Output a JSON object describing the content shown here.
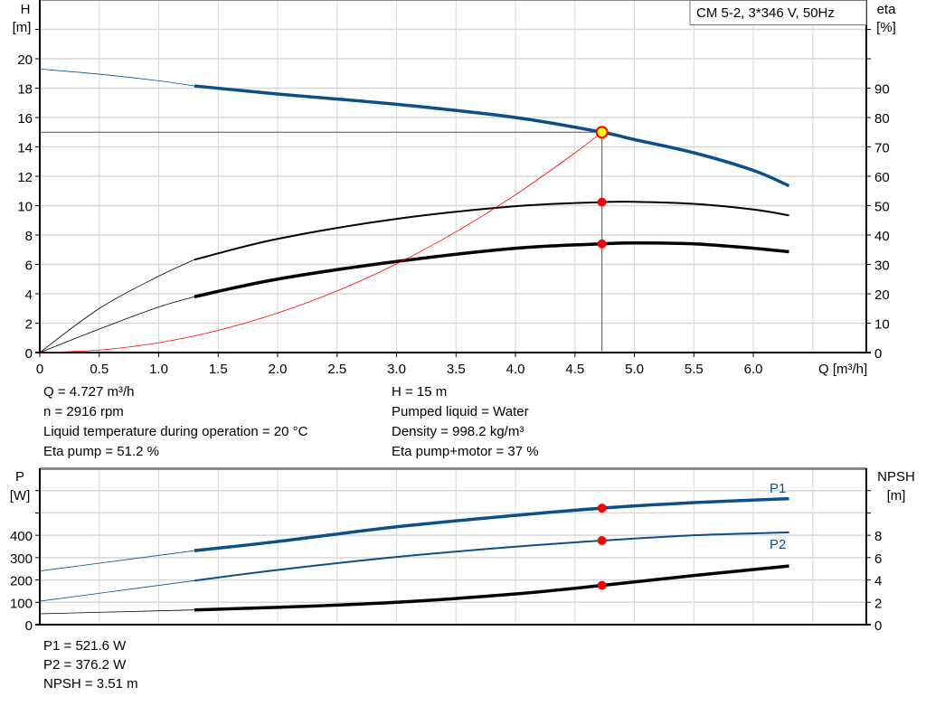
{
  "colors": {
    "blue": "#0d4f8b",
    "black": "#000000",
    "red": "#ff0000",
    "duty_fill": "#ffff00",
    "grid": "#d8d8d8"
  },
  "header": {
    "pump_label": "CM 5-2, 3*346 V, 50Hz"
  },
  "top_info": {
    "q": "Q = 4.727 m³/h",
    "n": "n = 2916 rpm",
    "temp": "Liquid temperature during operation = 20 °C",
    "eta_pump": "Eta pump = 51.2 %",
    "h": "H = 15 m",
    "liquid": "Pumped liquid = Water",
    "density": "Density = 998.2 kg/m³",
    "eta_total": "Eta pump+motor = 37 %"
  },
  "bottom_info": {
    "p1": "P1 = 521.6 W",
    "p2": "P2 = 376.2 W",
    "npsh": "NPSH = 3.51 m"
  },
  "chart_data": [
    {
      "type": "line",
      "xlabel": "Q [m³/h]",
      "ylabel_left": [
        "H",
        "[m]"
      ],
      "ylabel_right": [
        "eta",
        "[%]"
      ],
      "x_ticks": [
        "0",
        "0.5",
        "1.0",
        "1.5",
        "2.0",
        "2.5",
        "3.0",
        "3.5",
        "4.0",
        "4.5",
        "5.0",
        "5.5",
        "6.0"
      ],
      "y_left_ticks": [
        "0",
        "2",
        "4",
        "6",
        "8",
        "10",
        "12",
        "14",
        "16",
        "18",
        "20"
      ],
      "y_right_ticks": [
        "0",
        "10",
        "20",
        "30",
        "40",
        "50",
        "60",
        "70",
        "80",
        "90"
      ],
      "xlim": [
        0,
        6.95
      ],
      "ylim_left": [
        0,
        24
      ],
      "ylim_right": [
        0,
        120
      ],
      "grid": true,
      "duty_point": {
        "q": 4.727,
        "h": 15
      },
      "series": [
        {
          "key": "H",
          "axis": "left",
          "color": "blue",
          "min_q_range": 1.3,
          "x": [
            0,
            0.5,
            1.0,
            1.3,
            2.0,
            3.0,
            4.0,
            4.727,
            5.0,
            5.5,
            6.0,
            6.3
          ],
          "y": [
            19.3,
            18.95,
            18.5,
            18.15,
            17.6,
            16.9,
            16.0,
            15.0,
            14.5,
            13.6,
            12.4,
            11.35
          ]
        },
        {
          "key": "eta_pump",
          "axis": "right",
          "color": "black",
          "min_q_range": 1.3,
          "thin": true,
          "x": [
            0,
            0.5,
            1.0,
            1.3,
            2.0,
            3.0,
            4.0,
            4.727,
            5.0,
            5.5,
            6.0,
            6.3
          ],
          "y": [
            0,
            15,
            26,
            31.6,
            38.7,
            45.5,
            49.8,
            51.2,
            51.3,
            50.6,
            48.7,
            46.7
          ]
        },
        {
          "key": "eta_pump_motor",
          "axis": "right",
          "color": "black",
          "min_q_range": 1.3,
          "x": [
            0,
            0.5,
            1.0,
            1.3,
            2.0,
            3.0,
            4.0,
            4.727,
            5.0,
            5.5,
            6.0,
            6.3
          ],
          "y": [
            0,
            8,
            15.5,
            19,
            25,
            31,
            35.5,
            37,
            37.3,
            37,
            35.5,
            34.3
          ]
        },
        {
          "key": "system_curve",
          "axis": "left",
          "color": "red",
          "thin": true,
          "x": [
            0,
            0.5,
            1.0,
            1.5,
            2.0,
            2.5,
            3.0,
            3.5,
            4.0,
            4.5,
            4.727
          ],
          "y": [
            0,
            0.17,
            0.67,
            1.51,
            2.69,
            4.2,
            6.04,
            8.22,
            10.74,
            13.59,
            15.0
          ]
        }
      ],
      "markers": [
        {
          "axis": "right",
          "q": 4.727,
          "value": 51.2
        },
        {
          "axis": "right",
          "q": 4.727,
          "value": 37
        }
      ]
    },
    {
      "type": "line",
      "ylabel_left": [
        "P",
        "[W]"
      ],
      "ylabel_right": [
        "NPSH",
        "[m]"
      ],
      "y_left_ticks": [
        "0",
        "100",
        "200",
        "300",
        "400"
      ],
      "y_right_ticks": [
        "0",
        "2",
        "4",
        "6",
        "8"
      ],
      "ylim_left": [
        0,
        700
      ],
      "ylim_right": [
        0,
        14
      ],
      "grid": true,
      "series": [
        {
          "key": "P1",
          "name": "P1",
          "axis": "left",
          "color": "blue",
          "min_q_range": 1.3,
          "x": [
            0,
            1.3,
            2.0,
            3.0,
            4.0,
            4.727,
            5.5,
            6.3
          ],
          "y": [
            240,
            331,
            372,
            438,
            489,
            521.6,
            546,
            564
          ]
        },
        {
          "key": "P2",
          "name": "P2",
          "axis": "left",
          "color": "blue",
          "min_q_range": 1.3,
          "thin": true,
          "x": [
            0,
            1.3,
            2.0,
            3.0,
            4.0,
            4.727,
            5.5,
            6.3
          ],
          "y": [
            105,
            197,
            245,
            303,
            349,
            376.2,
            400,
            413
          ]
        },
        {
          "key": "NPSH",
          "axis": "right",
          "color": "black",
          "min_q_range": 1.3,
          "x": [
            0,
            1.3,
            2.0,
            3.0,
            4.0,
            4.727,
            5.5,
            6.3
          ],
          "y": [
            0.97,
            1.32,
            1.55,
            2.0,
            2.75,
            3.51,
            4.4,
            5.25
          ]
        }
      ],
      "markers": [
        {
          "axis": "left",
          "q": 4.727,
          "value": 521.6
        },
        {
          "axis": "left",
          "q": 4.727,
          "value": 376.2
        },
        {
          "axis": "right",
          "q": 4.727,
          "value": 3.51
        }
      ]
    }
  ]
}
